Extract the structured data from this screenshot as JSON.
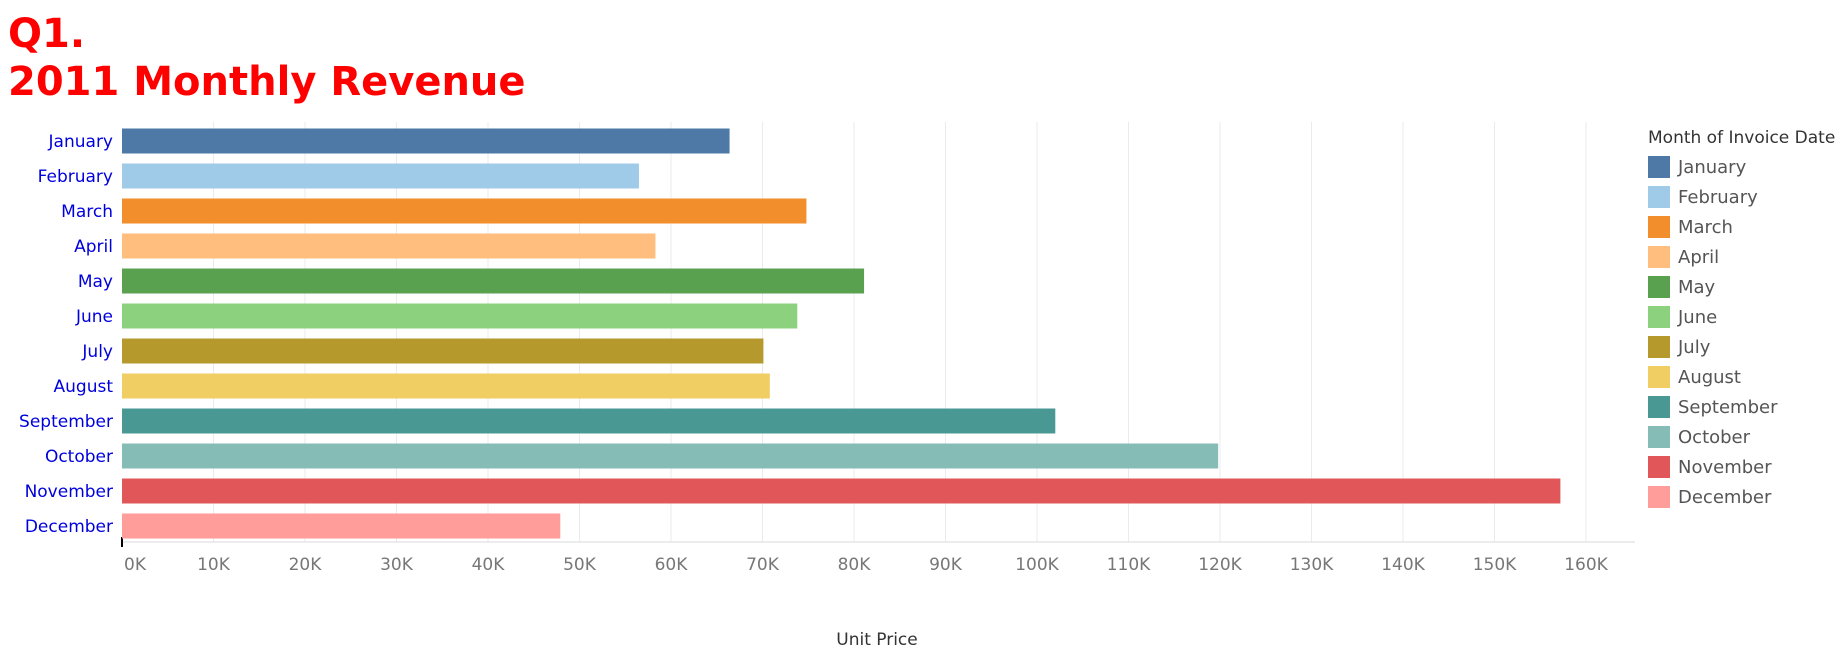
{
  "title": {
    "line1": "Q1.",
    "line2": "2011 Monthly Revenue"
  },
  "legend": {
    "title": "Month of Invoice Date"
  },
  "chart_data": {
    "type": "bar",
    "orientation": "horizontal",
    "title": "Q1. 2011 Monthly Revenue",
    "xlabel": "Unit Price",
    "ylabel": "",
    "xlim": [
      0,
      160000
    ],
    "grid": true,
    "legend_position": "right",
    "legend_title": "Month of Invoice Date",
    "categories": [
      "January",
      "February",
      "March",
      "April",
      "May",
      "June",
      "July",
      "August",
      "September",
      "October",
      "November",
      "December"
    ],
    "values": [
      66400,
      56500,
      74800,
      58300,
      81100,
      73800,
      70100,
      70800,
      102000,
      119800,
      157200,
      47900
    ],
    "colors": [
      "#4e79a7",
      "#a0cbe8",
      "#f28e2b",
      "#ffbe7d",
      "#59a14f",
      "#8cd17d",
      "#b6992d",
      "#f1ce63",
      "#499894",
      "#86bcb6",
      "#e15759",
      "#ff9d9a"
    ],
    "ticks": [
      0,
      10000,
      20000,
      30000,
      40000,
      50000,
      60000,
      70000,
      80000,
      90000,
      100000,
      110000,
      120000,
      130000,
      140000,
      150000,
      160000
    ],
    "tick_labels": [
      "0K",
      "10K",
      "20K",
      "30K",
      "40K",
      "50K",
      "60K",
      "70K",
      "80K",
      "90K",
      "100K",
      "110K",
      "120K",
      "130K",
      "140K",
      "150K",
      "160K"
    ]
  }
}
